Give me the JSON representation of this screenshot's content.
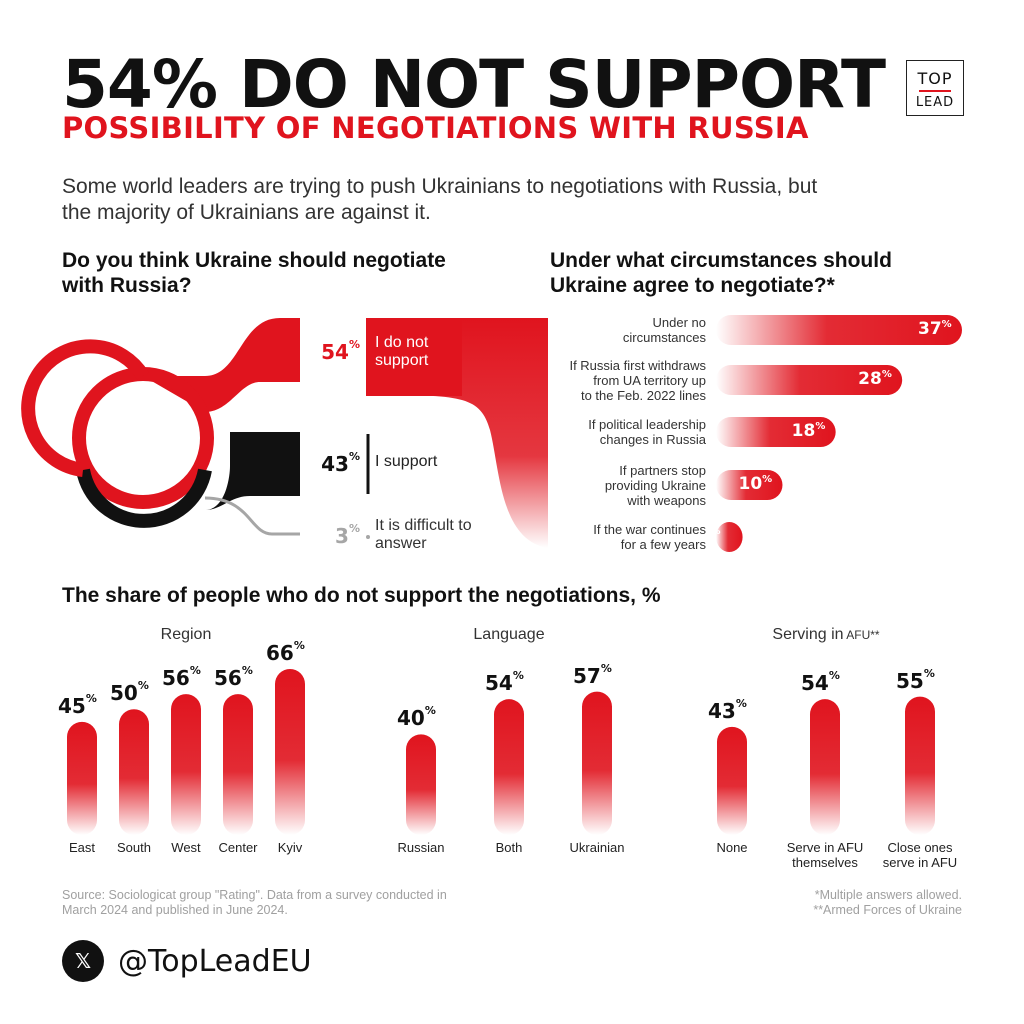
{
  "header": {
    "title": "54% DO NOT SUPPORT",
    "subtitle": "POSSIBILITY OF NEGOTIATIONS WITH RUSSIA",
    "intro": "Some world leaders are trying to push Ukrainians to negotiations with Russia, but the majority of Ukrainians are against it."
  },
  "logo": {
    "line1": "TOP",
    "line2": "LEAD"
  },
  "colors": {
    "accent": "#e0141e",
    "dark": "#111111",
    "grey": "#a6a6a6"
  },
  "chart_data": [
    {
      "type": "pie",
      "title": "Do you think Ukraine should negotiate with Russia?",
      "series": [
        {
          "name": "I do not support",
          "value": 54
        },
        {
          "name": "I support",
          "value": 43
        },
        {
          "name": "It is difficult to answer",
          "value": 3
        }
      ]
    },
    {
      "type": "bar",
      "orientation": "horizontal",
      "title": "Under what circumstances should Ukraine agree to negotiate?*",
      "categories": [
        "Under no circumstances",
        "If Russia first withdraws from UA territory up to the Feb. 2022 lines",
        "If political leadership changes in Russia",
        "If partners stop providing Ukraine with weapons",
        "If the war continues for a few years"
      ],
      "category_lines": [
        [
          "Under no",
          "circumstances"
        ],
        [
          "If Russia first withdraws",
          "from UA territory up",
          "to the Feb. 2022 lines"
        ],
        [
          "If political leadership",
          "changes in Russia"
        ],
        [
          "If partners stop",
          "providing Ukraine",
          "with weapons"
        ],
        [
          "If the war continues",
          "for a few years"
        ]
      ],
      "values": [
        37,
        28,
        18,
        10,
        4
      ]
    },
    {
      "type": "bar",
      "title": "The share of people who do not support the negotiations, %",
      "groups": [
        {
          "name": "Region",
          "name_suffix": "",
          "categories": [
            [
              "East"
            ],
            [
              "South"
            ],
            [
              "West"
            ],
            [
              "Center"
            ],
            [
              "Kyiv"
            ]
          ],
          "values": [
            45,
            50,
            56,
            56,
            66
          ]
        },
        {
          "name": "Language",
          "name_suffix": "",
          "categories": [
            [
              "Russian"
            ],
            [
              "Both"
            ],
            [
              "Ukrainian"
            ]
          ],
          "values": [
            40,
            54,
            57
          ]
        },
        {
          "name": "Serving in",
          "name_suffix": "AFU**",
          "categories": [
            [
              "None"
            ],
            [
              "Serve in AFU",
              "themselves"
            ],
            [
              "Close ones",
              "serve in AFU"
            ]
          ],
          "values": [
            43,
            54,
            55
          ]
        }
      ]
    }
  ],
  "footer": {
    "source": "Source: Sociologicat group \"Rating\". Data from a survey conducted in March 2024 and published in June 2024.",
    "note1": "*Multiple answers allowed.",
    "note2": "**Armed Forces of Ukraine",
    "handle": "@TopLeadEU",
    "x_icon": "x-logo-icon"
  }
}
